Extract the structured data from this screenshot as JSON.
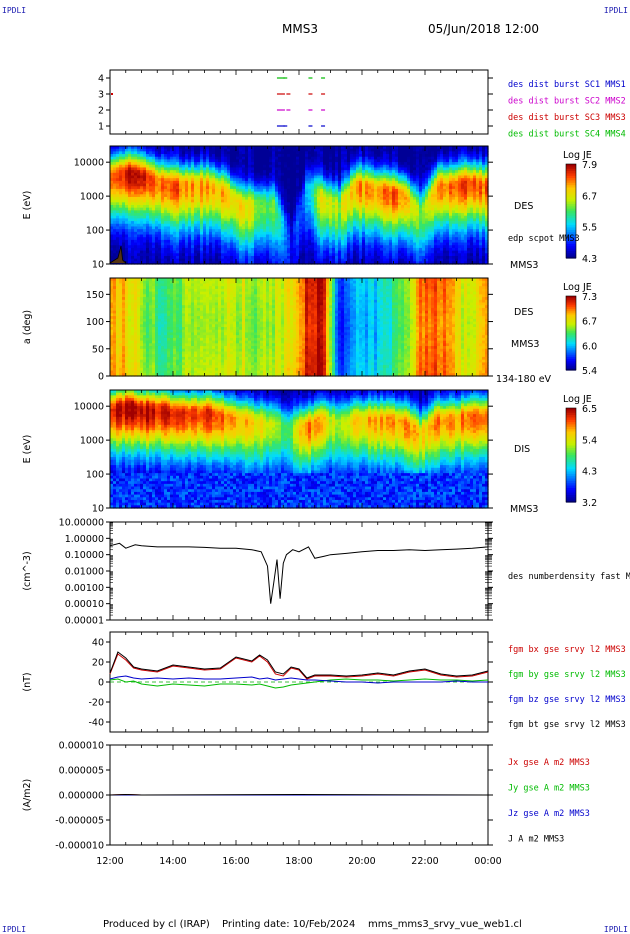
{
  "header": {
    "corner_tl": "IPDLI",
    "corner_tr": "IPDLI",
    "corner_bl": "IPDLI",
    "corner_br": "IPDLI",
    "spacecraft": "MMS3",
    "datetime": "05/Jun/2018 12:00"
  },
  "footer": {
    "produced": "Produced by cl (IRAP)",
    "printing": "Printing date: 10/Feb/2024",
    "file": "mms_mms3_srvy_vue_web1.cl"
  },
  "time_axis": [
    "12:00",
    "14:00",
    "16:00",
    "18:00",
    "20:00",
    "22:00",
    "00:00"
  ],
  "colors": {
    "blue": "#0000cc",
    "magenta": "#cc00cc",
    "red": "#cc0000",
    "green": "#00bb00",
    "black": "#000000"
  },
  "chart_data": [
    {
      "type": "scatter",
      "title": "",
      "ylim": [
        0.5,
        4.5
      ],
      "yticks": [
        "4",
        "3",
        "2",
        "1"
      ],
      "legend": [
        {
          "label": "des dist burst SC1 MMS1",
          "color": "#0000cc"
        },
        {
          "label": "des dist burst SC2 MMS2",
          "color": "#cc00cc"
        },
        {
          "label": "des dist burst SC3 MMS3",
          "color": "#cc0000"
        },
        {
          "label": "des dist burst SC4 MMS4",
          "color": "#00bb00"
        }
      ],
      "series": [
        {
          "name": "des dist burst SC4 MMS4",
          "y": 4,
          "x_hours": [
            17.3,
            17.5,
            18.3,
            18.7
          ]
        },
        {
          "name": "des dist burst SC3 MMS3",
          "y": 3,
          "x_hours": [
            17.3,
            17.6,
            18.3,
            18.7
          ]
        },
        {
          "name": "des dist burst SC2 MMS2",
          "y": 2,
          "x_hours": [
            17.3,
            17.6,
            18.3,
            18.7
          ]
        },
        {
          "name": "des dist burst SC1 MMS1",
          "y": 1,
          "x_hours": [
            17.3,
            17.5,
            18.3,
            18.7
          ]
        }
      ]
    },
    {
      "type": "heatmap",
      "ylabel": "E (eV)",
      "yscale": "log",
      "yticks": [
        "10000",
        "1000",
        "100",
        "10"
      ],
      "ylim": [
        10,
        30000
      ],
      "right_labels": [
        "DES",
        "edp scpot MMS3",
        "MMS3"
      ],
      "colorbar": {
        "title": "Log JE",
        "ticks": [
          "7.9",
          "6.7",
          "5.5",
          "4.3"
        ]
      },
      "peak_energy_log10_profile": [
        3.6,
        3.7,
        3.6,
        3.4,
        3.3,
        3.3,
        3.3,
        3.1,
        2.7,
        2.7,
        2.7,
        1.6,
        3.2,
        2.9,
        2.7,
        3.3,
        3.2,
        3.1,
        3.0,
        2.5,
        3.3,
        3.3,
        3.4,
        3.3
      ],
      "intensity_profile": [
        0.9,
        0.95,
        0.95,
        0.85,
        0.85,
        0.8,
        0.8,
        0.75,
        0.7,
        0.6,
        0.5,
        0.15,
        0.3,
        0.7,
        0.6,
        0.8,
        0.8,
        0.85,
        0.85,
        0.5,
        0.85,
        0.85,
        0.9,
        0.85
      ]
    },
    {
      "type": "heatmap",
      "ylabel": "a (deg)",
      "yticks": [
        "150",
        "100",
        "50",
        "0"
      ],
      "ylim": [
        0,
        180
      ],
      "right_labels": [
        "DES",
        "MMS3",
        "134-180 eV"
      ],
      "colorbar": {
        "title": "Log JE",
        "ticks": [
          "7.3",
          "6.7",
          "6.0",
          "5.4"
        ]
      },
      "intensity_profile": [
        0.75,
        0.7,
        0.55,
        0.45,
        0.5,
        0.6,
        0.55,
        0.6,
        0.6,
        0.55,
        0.6,
        0.65,
        0.9,
        0.95,
        0.1,
        0.3,
        0.3,
        0.4,
        0.5,
        0.8,
        0.85,
        0.7,
        0.55,
        0.8
      ]
    },
    {
      "type": "heatmap",
      "ylabel": "E (eV)",
      "yscale": "log",
      "yticks": [
        "10000",
        "1000",
        "100",
        "10"
      ],
      "ylim": [
        10,
        30000
      ],
      "right_labels": [
        "DIS",
        "MMS3"
      ],
      "colorbar": {
        "title": "Log JE",
        "ticks": [
          "6.5",
          "5.4",
          "4.3",
          "3.2"
        ]
      },
      "peak_energy_log10_profile": [
        3.9,
        4.0,
        3.9,
        3.9,
        3.8,
        3.8,
        3.8,
        3.7,
        3.6,
        3.5,
        3.5,
        3.3,
        3.4,
        3.6,
        3.5,
        3.6,
        3.6,
        3.6,
        3.5,
        3.2,
        3.6,
        3.6,
        3.7,
        3.7
      ],
      "intensity_profile": [
        0.95,
        1.0,
        1.0,
        0.95,
        0.95,
        0.9,
        0.9,
        0.85,
        0.75,
        0.7,
        0.6,
        0.5,
        0.85,
        0.75,
        0.55,
        0.75,
        0.75,
        0.8,
        0.8,
        0.7,
        0.8,
        0.8,
        0.85,
        0.85
      ]
    },
    {
      "type": "line",
      "ylabel": "(cm^-3)",
      "yscale": "log",
      "yticks": [
        "10.00000",
        "1.00000",
        "0.10000",
        "0.01000",
        "0.00100",
        "0.00010",
        "0.00001"
      ],
      "ylim": [
        1e-05,
        10
      ],
      "series": [
        {
          "name": "des numberdensity fast M",
          "color": "#000000",
          "x_hours": [
            12.0,
            12.3,
            12.5,
            12.8,
            13.0,
            13.5,
            14.0,
            14.5,
            15.0,
            15.5,
            16.0,
            16.5,
            16.8,
            17.0,
            17.1,
            17.2,
            17.3,
            17.4,
            17.5,
            17.6,
            17.8,
            18.0,
            18.3,
            18.5,
            18.8,
            19.0,
            19.5,
            20.0,
            20.5,
            21.0,
            21.5,
            22.0,
            22.5,
            23.0,
            23.5,
            24.0
          ],
          "values": [
            0.35,
            0.5,
            0.25,
            0.4,
            0.35,
            0.3,
            0.3,
            0.3,
            0.28,
            0.25,
            0.25,
            0.2,
            0.15,
            0.02,
            0.0001,
            0.002,
            0.05,
            0.0002,
            0.03,
            0.1,
            0.2,
            0.15,
            0.3,
            0.06,
            0.08,
            0.1,
            0.12,
            0.15,
            0.18,
            0.18,
            0.2,
            0.18,
            0.2,
            0.22,
            0.25,
            0.3
          ]
        }
      ],
      "legend": [
        "des numberdensity fast M"
      ]
    },
    {
      "type": "line",
      "ylabel": "(nT)",
      "yticks": [
        "40",
        "20",
        "0",
        "-20",
        "-40"
      ],
      "ylim": [
        -50,
        50
      ],
      "x_hours": [
        12.0,
        12.25,
        12.5,
        12.75,
        13.0,
        13.5,
        14.0,
        14.5,
        15.0,
        15.5,
        16.0,
        16.5,
        16.75,
        17.0,
        17.25,
        17.5,
        17.75,
        18.0,
        18.25,
        18.5,
        19.0,
        19.5,
        20.0,
        20.5,
        21.0,
        21.5,
        22.0,
        22.5,
        23.0,
        23.5,
        24.0
      ],
      "series": [
        {
          "name": "fgm bx gse srvy l2 MMS3",
          "color": "#cc0000",
          "values": [
            8,
            28,
            22,
            14,
            12,
            10,
            16,
            14,
            12,
            13,
            24,
            20,
            26,
            20,
            8,
            6,
            14,
            12,
            3,
            6,
            6,
            5,
            6,
            8,
            6,
            10,
            12,
            7,
            5,
            6,
            10
          ]
        },
        {
          "name": "fgm by gse srvy l2 MMS3",
          "color": "#00bb00",
          "values": [
            2,
            3,
            0,
            1,
            -2,
            -4,
            -2,
            -3,
            -4,
            -2,
            -2,
            -3,
            -2,
            -4,
            -6,
            -5,
            -3,
            -2,
            -1,
            0,
            2,
            3,
            2,
            2,
            1,
            2,
            3,
            2,
            2,
            1,
            2
          ]
        },
        {
          "name": "fgm bz gse srvy l2 MMS3",
          "color": "#0000cc",
          "values": [
            3,
            5,
            6,
            4,
            3,
            4,
            3,
            4,
            3,
            3,
            4,
            5,
            3,
            4,
            2,
            3,
            4,
            3,
            2,
            2,
            1,
            0,
            0,
            -1,
            0,
            0,
            0,
            0,
            1,
            0,
            0
          ]
        },
        {
          "name": "fgm bt gse srvy l2 MMS3",
          "color": "#000000",
          "values": [
            9,
            30,
            24,
            15,
            13,
            11,
            17,
            15,
            13,
            14,
            25,
            21,
            27,
            22,
            10,
            8,
            15,
            13,
            4,
            7,
            7,
            6,
            7,
            9,
            7,
            11,
            13,
            8,
            6,
            7,
            11
          ]
        }
      ]
    },
    {
      "type": "line",
      "ylabel": "(A/m2)",
      "yticks": [
        "0.000010",
        "0.000005",
        "0.000000",
        "-0.000005",
        "-0.000010"
      ],
      "ylim": [
        -1e-05,
        1e-05
      ],
      "x_hours": [
        12.0,
        12.5,
        13.0,
        18.0,
        24.0
      ],
      "series": [
        {
          "name": "Jx gse A m2 MMS3",
          "color": "#cc0000",
          "values": [
            0,
            1e-07,
            0,
            0,
            0
          ]
        },
        {
          "name": "Jy gse A m2 MMS3",
          "color": "#00bb00",
          "values": [
            0,
            0,
            0,
            0,
            0
          ]
        },
        {
          "name": "Jz gse A m2 MMS3",
          "color": "#0000cc",
          "values": [
            0,
            0,
            0,
            0,
            0
          ]
        },
        {
          "name": "J A m2 MMS3",
          "color": "#000000",
          "values": [
            0,
            1e-07,
            0,
            1e-07,
            0
          ]
        }
      ]
    }
  ]
}
